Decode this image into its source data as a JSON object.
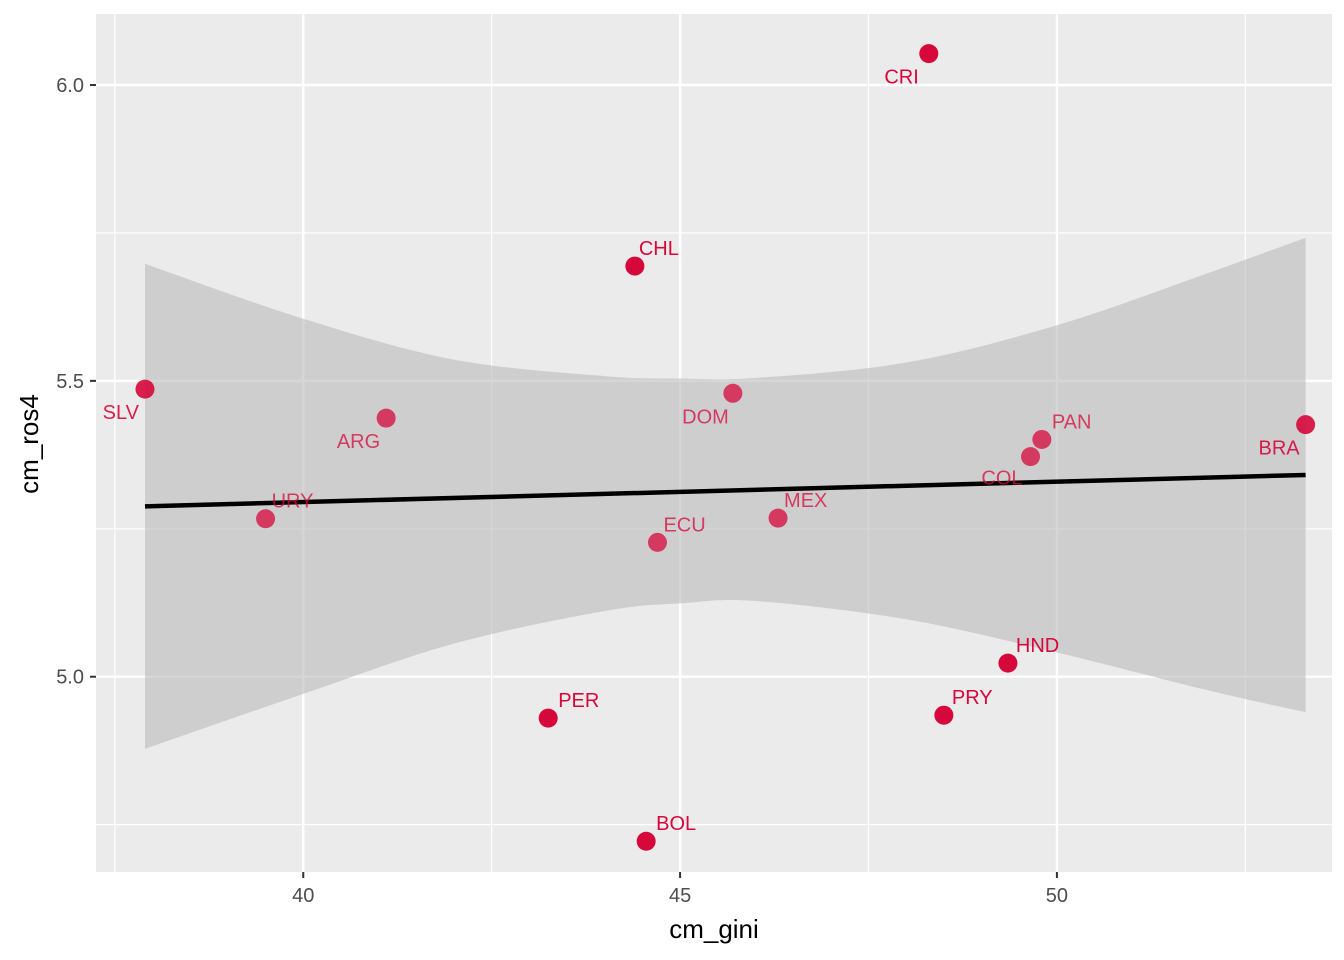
{
  "chart_data": {
    "type": "scatter",
    "xlabel": "cm_gini",
    "ylabel": "cm_ros4",
    "xlim": [
      37.25,
      53.65
    ],
    "ylim": [
      4.67,
      6.12
    ],
    "x_ticks": [
      40,
      45,
      50
    ],
    "x_tick_labels": [
      "40",
      "45",
      "50"
    ],
    "y_ticks": [
      5.0,
      5.5,
      6.0
    ],
    "y_tick_labels": [
      "5.0",
      "5.5",
      "6.0"
    ],
    "grid": true,
    "legend": "none",
    "point_color": "#d6083b",
    "trend_line": {
      "x": [
        37.9,
        53.3
      ],
      "y": [
        5.288,
        5.341
      ]
    },
    "confidence_band": {
      "x": [
        37.9,
        40,
        42,
        44,
        45,
        46,
        48,
        50,
        52,
        53.3
      ],
      "upper": [
        5.698,
        5.605,
        5.536,
        5.508,
        5.504,
        5.505,
        5.531,
        5.594,
        5.682,
        5.742
      ],
      "lower": [
        4.878,
        4.971,
        5.056,
        5.111,
        5.124,
        5.128,
        5.097,
        5.041,
        4.977,
        4.94
      ]
    },
    "points": [
      {
        "label": "CRI",
        "x": 48.3,
        "y": 6.053,
        "alpha": 1.0,
        "anchor": "right",
        "dx": -10,
        "dy": 30
      },
      {
        "label": "CHL",
        "x": 44.4,
        "y": 5.694,
        "alpha": 1.0,
        "anchor": "left",
        "dx": 4,
        "dy": -11
      },
      {
        "label": "SLV",
        "x": 37.9,
        "y": 5.486,
        "alpha": 0.9,
        "anchor": "right",
        "dx": -6,
        "dy": 30
      },
      {
        "label": "ARG",
        "x": 41.1,
        "y": 5.437,
        "alpha": 0.75,
        "anchor": "right",
        "dx": -6,
        "dy": 30
      },
      {
        "label": "DOM",
        "x": 45.7,
        "y": 5.479,
        "alpha": 0.75,
        "anchor": "right",
        "dx": -4,
        "dy": 30
      },
      {
        "label": "PAN",
        "x": 49.8,
        "y": 5.401,
        "alpha": 0.75,
        "anchor": "left",
        "dx": 10,
        "dy": -11
      },
      {
        "label": "COL",
        "x": 49.65,
        "y": 5.372,
        "alpha": 0.75,
        "anchor": "right",
        "dx": -8,
        "dy": 28
      },
      {
        "label": "BRA",
        "x": 53.3,
        "y": 5.426,
        "alpha": 0.9,
        "anchor": "right",
        "dx": -6,
        "dy": 30
      },
      {
        "label": "URY",
        "x": 39.5,
        "y": 5.267,
        "alpha": 0.75,
        "anchor": "left",
        "dx": 6,
        "dy": -11
      },
      {
        "label": "MEX",
        "x": 46.3,
        "y": 5.268,
        "alpha": 0.75,
        "anchor": "left",
        "dx": 6,
        "dy": -11
      },
      {
        "label": "ECU",
        "x": 44.7,
        "y": 5.227,
        "alpha": 0.75,
        "anchor": "left",
        "dx": 6,
        "dy": -11
      },
      {
        "label": "HND",
        "x": 49.35,
        "y": 5.023,
        "alpha": 1.0,
        "anchor": "left",
        "dx": 8,
        "dy": -11
      },
      {
        "label": "PRY",
        "x": 48.5,
        "y": 4.935,
        "alpha": 1.0,
        "anchor": "left",
        "dx": 8,
        "dy": -11
      },
      {
        "label": "PER",
        "x": 43.25,
        "y": 4.93,
        "alpha": 1.0,
        "anchor": "left",
        "dx": 10,
        "dy": -11
      },
      {
        "label": "BOL",
        "x": 44.55,
        "y": 4.722,
        "alpha": 1.0,
        "anchor": "left",
        "dx": 10,
        "dy": -11
      }
    ]
  }
}
